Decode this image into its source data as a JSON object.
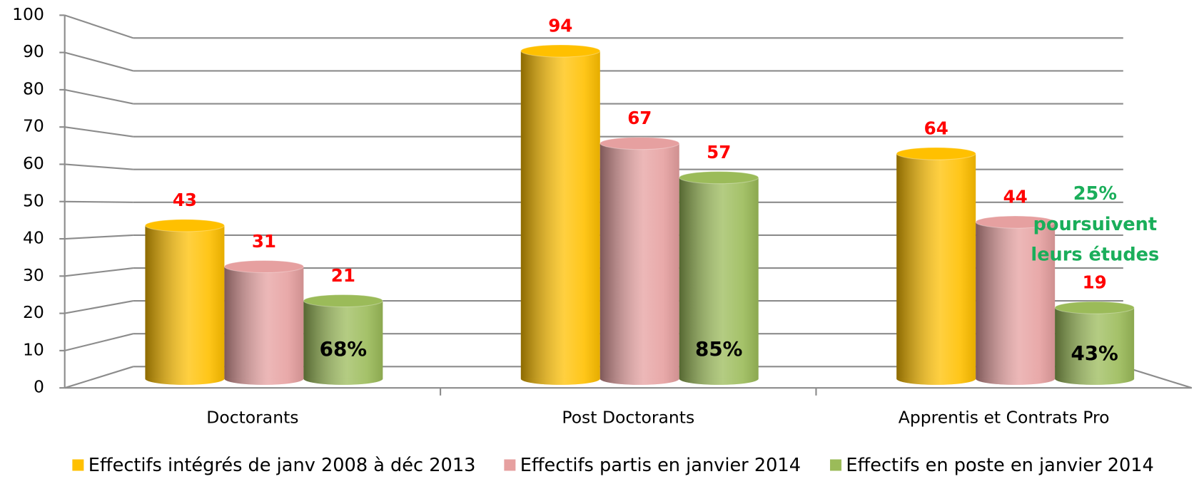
{
  "chart_data": {
    "type": "bar",
    "categories": [
      "Doctorants",
      "Post Doctorants",
      "Apprentis et Contrats Pro"
    ],
    "series": [
      {
        "name": "Effectifs intégrés de janv 2008 à déc 2013",
        "color": "#ffc000",
        "values": [
          43,
          94,
          64
        ]
      },
      {
        "name": "Effectifs partis en janvier 2014",
        "color": "#e6a0a0",
        "values": [
          31,
          67,
          44
        ]
      },
      {
        "name": "Effectifs en poste en janvier 2014",
        "color": "#9bbb59",
        "values": [
          21,
          57,
          19
        ]
      }
    ],
    "inner_labels": [
      "68%",
      "85%",
      "43%"
    ],
    "annotation": [
      "25%",
      "poursuivent",
      "leurs études"
    ],
    "ylim": [
      0,
      100
    ],
    "yticks": [
      0,
      10,
      20,
      30,
      40,
      50,
      60,
      70,
      80,
      90,
      100
    ],
    "grid": true,
    "legend": "bottom"
  }
}
